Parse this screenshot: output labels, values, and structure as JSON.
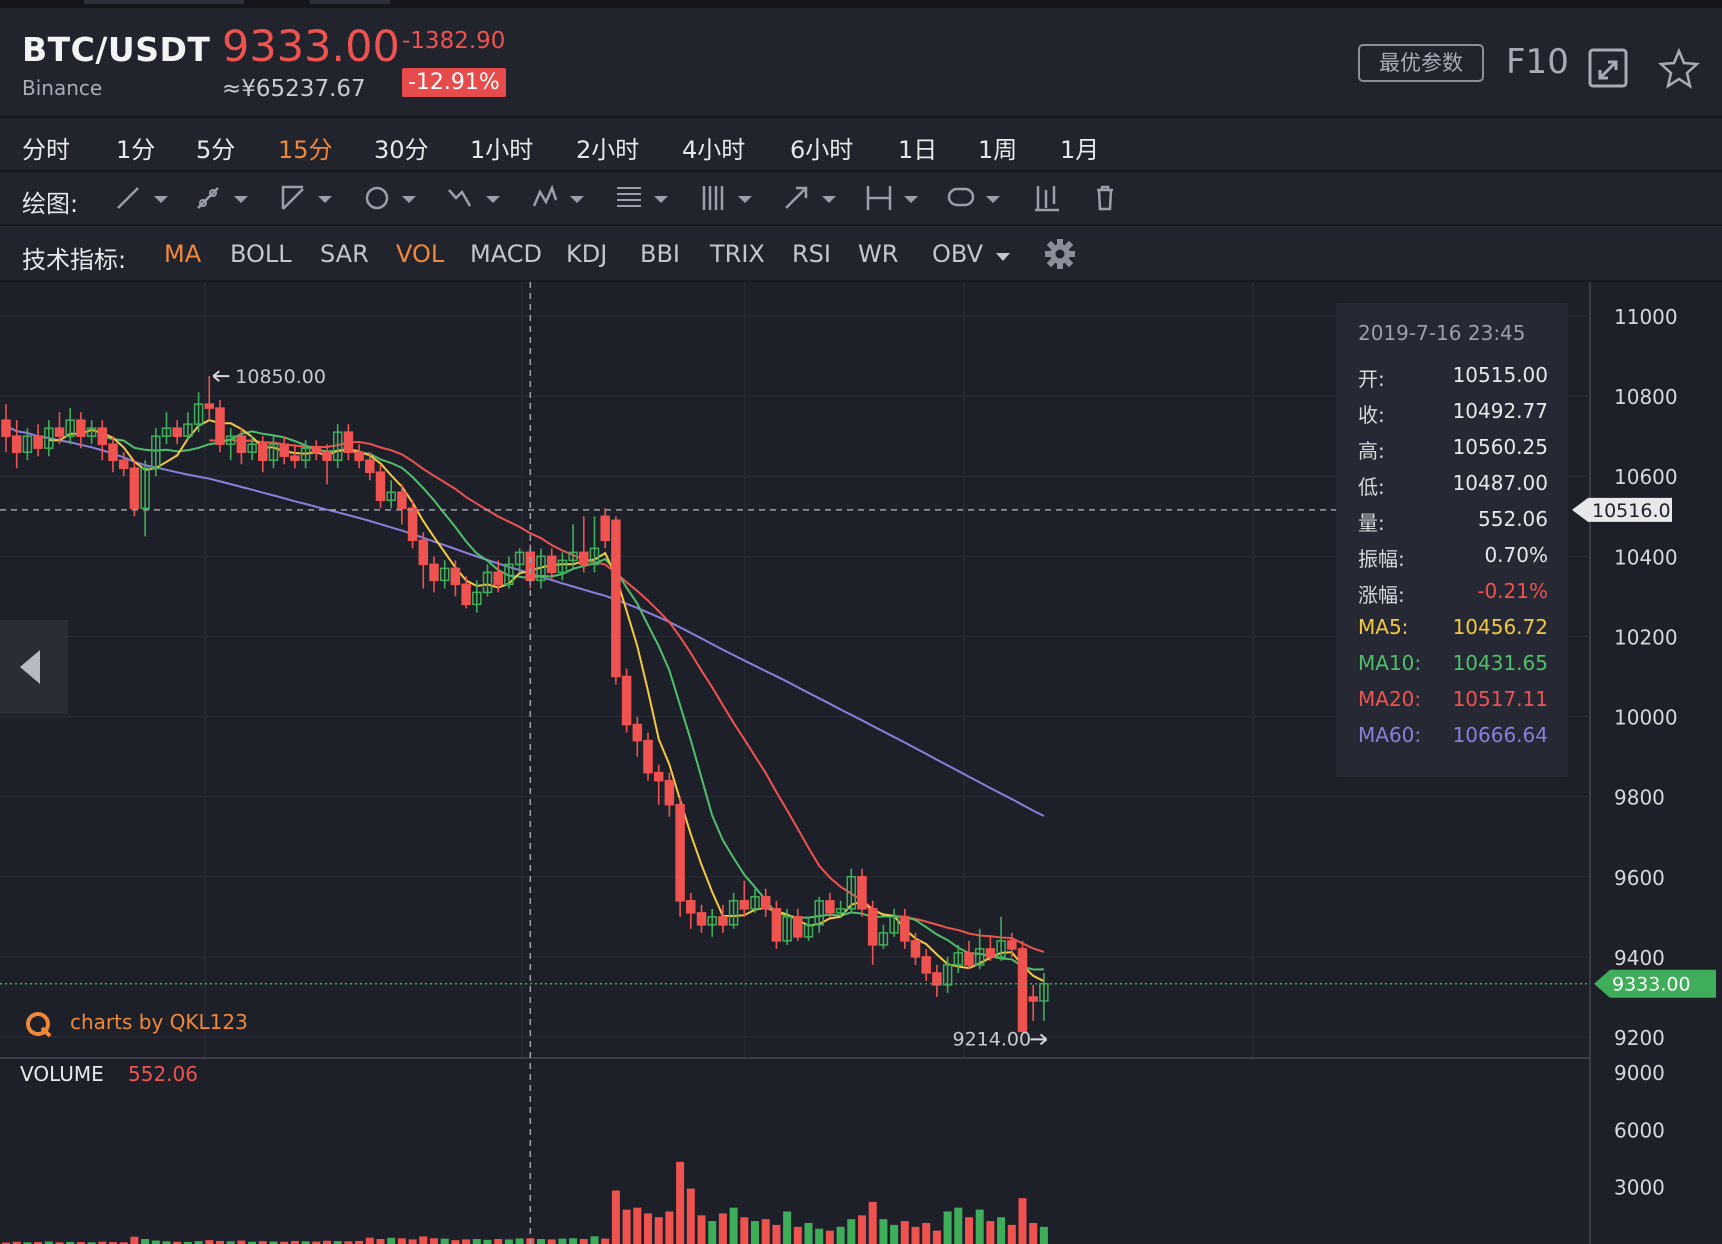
{
  "header": {
    "pair": "BTC/USDT",
    "exchange": "Binance",
    "price": "9333.00",
    "price_cny": "≈¥65237.67",
    "change": "-1382.90",
    "change_pct": "-12.91%",
    "optimal_params_label": "最优参数",
    "f10_label": "F10",
    "fullscreen_icon": "expand-icon",
    "favorite_icon": "star-icon"
  },
  "timeframes": [
    {
      "label": "分时",
      "active": false
    },
    {
      "label": "1分",
      "active": false
    },
    {
      "label": "5分",
      "active": false
    },
    {
      "label": "15分",
      "active": true
    },
    {
      "label": "30分",
      "active": false
    },
    {
      "label": "1小时",
      "active": false
    },
    {
      "label": "2小时",
      "active": false
    },
    {
      "label": "4小时",
      "active": false
    },
    {
      "label": "6小时",
      "active": false
    },
    {
      "label": "1日",
      "active": false
    },
    {
      "label": "1周",
      "active": false
    },
    {
      "label": "1月",
      "active": false
    }
  ],
  "drawing": {
    "label": "绘图:",
    "tools": [
      "line-tool-icon",
      "ray-tool-icon",
      "angle-tool-icon",
      "circle-tool-icon",
      "wave-tool-icon",
      "pattern-tool-icon",
      "fibonacci-tool-icon",
      "parallel-lines-tool-icon",
      "arrow-tool-icon",
      "measure-tool-icon",
      "label-tool-icon",
      "candle-tool-icon",
      "trash-icon"
    ]
  },
  "indicators": {
    "label": "技术指标:",
    "items": [
      {
        "label": "MA",
        "active": true
      },
      {
        "label": "BOLL",
        "active": false
      },
      {
        "label": "SAR",
        "active": false
      },
      {
        "label": "VOL",
        "active": true
      },
      {
        "label": "MACD",
        "active": false
      },
      {
        "label": "KDJ",
        "active": false
      },
      {
        "label": "BBI",
        "active": false
      },
      {
        "label": "TRIX",
        "active": false
      },
      {
        "label": "RSI",
        "active": false
      },
      {
        "label": "WR",
        "active": false
      },
      {
        "label": "OBV",
        "active": false
      }
    ],
    "settings_icon": "gear-icon"
  },
  "tooltip": {
    "time": "2019-7-16 23:45",
    "rows": [
      {
        "key": "开:",
        "value": "10515.00",
        "color": "#d6d8de",
        "vcolor": "#e6e8ec"
      },
      {
        "key": "收:",
        "value": "10492.77",
        "color": "#d6d8de",
        "vcolor": "#e6e8ec"
      },
      {
        "key": "高:",
        "value": "10560.25",
        "color": "#d6d8de",
        "vcolor": "#e6e8ec"
      },
      {
        "key": "低:",
        "value": "10487.00",
        "color": "#d6d8de",
        "vcolor": "#e6e8ec"
      },
      {
        "key": "量:",
        "value": "552.06",
        "color": "#d6d8de",
        "vcolor": "#e6e8ec"
      },
      {
        "key": "振幅:",
        "value": "0.70%",
        "color": "#d6d8de",
        "vcolor": "#e6e8ec"
      },
      {
        "key": "涨幅:",
        "value": "-0.21%",
        "color": "#d6d8de",
        "vcolor": "#ef5350"
      },
      {
        "key": "MA5:",
        "value": "10456.72",
        "color": "#f3c942",
        "vcolor": "#f3c942"
      },
      {
        "key": "MA10:",
        "value": "10431.65",
        "color": "#4fbf6a",
        "vcolor": "#4fbf6a"
      },
      {
        "key": "MA20:",
        "value": "10517.11",
        "color": "#ef5350",
        "vcolor": "#ef5350"
      },
      {
        "key": "MA60:",
        "value": "10666.64",
        "color": "#8b7fdc",
        "vcolor": "#8b7fdc"
      }
    ]
  },
  "watermark": "charts by QKL123",
  "volume": {
    "label": "VOLUME",
    "value": "552.06"
  },
  "colors": {
    "up": "#3fae5a",
    "down": "#ef5350",
    "ma5": "#f3c942",
    "ma10": "#4fbf6a",
    "ma20": "#ef5350",
    "ma60": "#8b7fdc",
    "accent": "#f0883a"
  },
  "chart_data": {
    "type": "candlestick",
    "y_axis_labels": [
      "11000",
      "10800",
      "10600",
      "10400",
      "10200",
      "10000",
      "9800",
      "9600",
      "9400",
      "9200"
    ],
    "ylim": [
      9200,
      11000
    ],
    "volume_axis_labels": [
      "9000",
      "6000",
      "3000"
    ],
    "volume_ylim": [
      0,
      9000
    ],
    "crosshair_price": "10516.0",
    "last_price_label": "9333.00",
    "last_price": 9333.0,
    "crosshair_value": 10516.0,
    "high_marker": {
      "label": "10850.00",
      "value": 10850,
      "index": 19
    },
    "low_marker": {
      "label": "9214.00",
      "value": 9214,
      "index": 95
    },
    "crosshair_index": 49,
    "candles": [
      {
        "o": 10740,
        "c": 10700,
        "h": 10780,
        "l": 10660
      },
      {
        "o": 10700,
        "c": 10660,
        "h": 10740,
        "l": 10620
      },
      {
        "o": 10660,
        "c": 10700,
        "h": 10720,
        "l": 10640
      },
      {
        "o": 10700,
        "c": 10670,
        "h": 10730,
        "l": 10650
      },
      {
        "o": 10670,
        "c": 10720,
        "h": 10740,
        "l": 10650
      },
      {
        "o": 10720,
        "c": 10700,
        "h": 10760,
        "l": 10680
      },
      {
        "o": 10700,
        "c": 10740,
        "h": 10770,
        "l": 10680
      },
      {
        "o": 10740,
        "c": 10700,
        "h": 10760,
        "l": 10670
      },
      {
        "o": 10700,
        "c": 10720,
        "h": 10740,
        "l": 10680
      },
      {
        "o": 10720,
        "c": 10680,
        "h": 10740,
        "l": 10640
      },
      {
        "o": 10680,
        "c": 10640,
        "h": 10700,
        "l": 10610
      },
      {
        "o": 10640,
        "c": 10620,
        "h": 10660,
        "l": 10600
      },
      {
        "o": 10620,
        "c": 10520,
        "h": 10640,
        "l": 10500
      },
      {
        "o": 10520,
        "c": 10620,
        "h": 10640,
        "l": 10450
      },
      {
        "o": 10620,
        "c": 10700,
        "h": 10720,
        "l": 10600
      },
      {
        "o": 10700,
        "c": 10720,
        "h": 10760,
        "l": 10680
      },
      {
        "o": 10720,
        "c": 10700,
        "h": 10740,
        "l": 10680
      },
      {
        "o": 10700,
        "c": 10730,
        "h": 10760,
        "l": 10690
      },
      {
        "o": 10730,
        "c": 10780,
        "h": 10810,
        "l": 10710
      },
      {
        "o": 10780,
        "c": 10770,
        "h": 10850,
        "l": 10740
      },
      {
        "o": 10770,
        "c": 10680,
        "h": 10790,
        "l": 10660
      },
      {
        "o": 10680,
        "c": 10700,
        "h": 10720,
        "l": 10640
      },
      {
        "o": 10700,
        "c": 10660,
        "h": 10720,
        "l": 10630
      },
      {
        "o": 10660,
        "c": 10680,
        "h": 10700,
        "l": 10640
      },
      {
        "o": 10680,
        "c": 10640,
        "h": 10700,
        "l": 10610
      },
      {
        "o": 10640,
        "c": 10680,
        "h": 10700,
        "l": 10620
      },
      {
        "o": 10680,
        "c": 10650,
        "h": 10700,
        "l": 10630
      },
      {
        "o": 10650,
        "c": 10640,
        "h": 10680,
        "l": 10620
      },
      {
        "o": 10640,
        "c": 10670,
        "h": 10690,
        "l": 10620
      },
      {
        "o": 10670,
        "c": 10660,
        "h": 10690,
        "l": 10640
      },
      {
        "o": 10660,
        "c": 10640,
        "h": 10680,
        "l": 10580
      },
      {
        "o": 10640,
        "c": 10710,
        "h": 10730,
        "l": 10620
      },
      {
        "o": 10710,
        "c": 10660,
        "h": 10730,
        "l": 10640
      },
      {
        "o": 10660,
        "c": 10640,
        "h": 10680,
        "l": 10620
      },
      {
        "o": 10640,
        "c": 10610,
        "h": 10660,
        "l": 10590
      },
      {
        "o": 10610,
        "c": 10540,
        "h": 10630,
        "l": 10520
      },
      {
        "o": 10540,
        "c": 10560,
        "h": 10590,
        "l": 10520
      },
      {
        "o": 10560,
        "c": 10520,
        "h": 10580,
        "l": 10480
      },
      {
        "o": 10520,
        "c": 10440,
        "h": 10540,
        "l": 10420
      },
      {
        "o": 10440,
        "c": 10380,
        "h": 10460,
        "l": 10320
      },
      {
        "o": 10380,
        "c": 10340,
        "h": 10400,
        "l": 10310
      },
      {
        "o": 10340,
        "c": 10370,
        "h": 10390,
        "l": 10320
      },
      {
        "o": 10370,
        "c": 10330,
        "h": 10390,
        "l": 10300
      },
      {
        "o": 10330,
        "c": 10280,
        "h": 10350,
        "l": 10270
      },
      {
        "o": 10280,
        "c": 10310,
        "h": 10340,
        "l": 10260
      },
      {
        "o": 10310,
        "c": 10360,
        "h": 10380,
        "l": 10300
      },
      {
        "o": 10360,
        "c": 10330,
        "h": 10390,
        "l": 10310
      },
      {
        "o": 10330,
        "c": 10380,
        "h": 10400,
        "l": 10320
      },
      {
        "o": 10380,
        "c": 10410,
        "h": 10420,
        "l": 10360
      },
      {
        "o": 10410,
        "c": 10340,
        "h": 10430,
        "l": 10320
      },
      {
        "o": 10340,
        "c": 10400,
        "h": 10420,
        "l": 10320
      },
      {
        "o": 10400,
        "c": 10360,
        "h": 10420,
        "l": 10340
      },
      {
        "o": 10360,
        "c": 10390,
        "h": 10410,
        "l": 10340
      },
      {
        "o": 10390,
        "c": 10410,
        "h": 10480,
        "l": 10370
      },
      {
        "o": 10410,
        "c": 10380,
        "h": 10500,
        "l": 10360
      },
      {
        "o": 10380,
        "c": 10420,
        "h": 10500,
        "l": 10360
      },
      {
        "o": 10500,
        "c": 10440,
        "h": 10520,
        "l": 10420
      },
      {
        "o": 10490,
        "c": 10100,
        "h": 10500,
        "l": 10080
      },
      {
        "o": 10100,
        "c": 9980,
        "h": 10120,
        "l": 9960
      },
      {
        "o": 9980,
        "c": 9940,
        "h": 10000,
        "l": 9900
      },
      {
        "o": 9940,
        "c": 9860,
        "h": 9960,
        "l": 9840
      },
      {
        "o": 9860,
        "c": 9840,
        "h": 9880,
        "l": 9780
      },
      {
        "o": 9840,
        "c": 9780,
        "h": 9860,
        "l": 9750
      },
      {
        "o": 9780,
        "c": 9540,
        "h": 9800,
        "l": 9500
      },
      {
        "o": 9540,
        "c": 9510,
        "h": 9560,
        "l": 9470
      },
      {
        "o": 9510,
        "c": 9480,
        "h": 9530,
        "l": 9460
      },
      {
        "o": 9480,
        "c": 9500,
        "h": 9520,
        "l": 9450
      },
      {
        "o": 9500,
        "c": 9480,
        "h": 9530,
        "l": 9460
      },
      {
        "o": 9480,
        "c": 9540,
        "h": 9560,
        "l": 9470
      },
      {
        "o": 9540,
        "c": 9520,
        "h": 9590,
        "l": 9500
      },
      {
        "o": 9520,
        "c": 9550,
        "h": 9570,
        "l": 9510
      },
      {
        "o": 9550,
        "c": 9520,
        "h": 9570,
        "l": 9500
      },
      {
        "o": 9520,
        "c": 9440,
        "h": 9540,
        "l": 9420
      },
      {
        "o": 9440,
        "c": 9500,
        "h": 9520,
        "l": 9430
      },
      {
        "o": 9500,
        "c": 9450,
        "h": 9520,
        "l": 9440
      },
      {
        "o": 9450,
        "c": 9480,
        "h": 9500,
        "l": 9440
      },
      {
        "o": 9480,
        "c": 9540,
        "h": 9550,
        "l": 9460
      },
      {
        "o": 9540,
        "c": 9510,
        "h": 9560,
        "l": 9500
      },
      {
        "o": 9510,
        "c": 9520,
        "h": 9540,
        "l": 9500
      },
      {
        "o": 9520,
        "c": 9600,
        "h": 9620,
        "l": 9510
      },
      {
        "o": 9600,
        "c": 9520,
        "h": 9620,
        "l": 9500
      },
      {
        "o": 9520,
        "c": 9430,
        "h": 9540,
        "l": 9380
      },
      {
        "o": 9430,
        "c": 9460,
        "h": 9480,
        "l": 9420
      },
      {
        "o": 9460,
        "c": 9500,
        "h": 9520,
        "l": 9450
      },
      {
        "o": 9500,
        "c": 9440,
        "h": 9520,
        "l": 9420
      },
      {
        "o": 9440,
        "c": 9400,
        "h": 9460,
        "l": 9380
      },
      {
        "o": 9400,
        "c": 9360,
        "h": 9420,
        "l": 9340
      },
      {
        "o": 9360,
        "c": 9330,
        "h": 9380,
        "l": 9300
      },
      {
        "o": 9330,
        "c": 9380,
        "h": 9400,
        "l": 9310
      },
      {
        "o": 9380,
        "c": 9410,
        "h": 9430,
        "l": 9360
      },
      {
        "o": 9410,
        "c": 9380,
        "h": 9440,
        "l": 9370
      },
      {
        "o": 9380,
        "c": 9420,
        "h": 9470,
        "l": 9370
      },
      {
        "o": 9420,
        "c": 9400,
        "h": 9450,
        "l": 9390
      },
      {
        "o": 9400,
        "c": 9440,
        "h": 9500,
        "l": 9390
      },
      {
        "o": 9440,
        "c": 9420,
        "h": 9460,
        "l": 9400
      },
      {
        "o": 9420,
        "c": 9214,
        "h": 9440,
        "l": 9214
      },
      {
        "o": 9300,
        "c": 9290,
        "h": 9330,
        "l": 9240
      },
      {
        "o": 9290,
        "c": 9333,
        "h": 9360,
        "l": 9240
      }
    ],
    "volumes": [
      80,
      120,
      90,
      100,
      130,
      90,
      110,
      100,
      90,
      120,
      100,
      90,
      380,
      260,
      180,
      140,
      120,
      110,
      150,
      200,
      160,
      140,
      180,
      120,
      150,
      130,
      120,
      160,
      140,
      130,
      170,
      150,
      140,
      160,
      330,
      260,
      320,
      300,
      240,
      400,
      300,
      280,
      200,
      240,
      260,
      220,
      260,
      240,
      290,
      300,
      260,
      240,
      280,
      300,
      260,
      400,
      280,
      2800,
      1800,
      1900,
      1600,
      1400,
      1700,
      4300,
      2900,
      1500,
      1200,
      1600,
      1900,
      1400,
      1200,
      1300,
      1000,
      1700,
      900,
      1100,
      800,
      700,
      900,
      1300,
      1500,
      2200,
      1300,
      1000,
      1200,
      900,
      1100,
      700,
      1700,
      1900,
      1400,
      1800,
      1200,
      1400,
      1000,
      2400,
      1100,
      900
    ]
  }
}
